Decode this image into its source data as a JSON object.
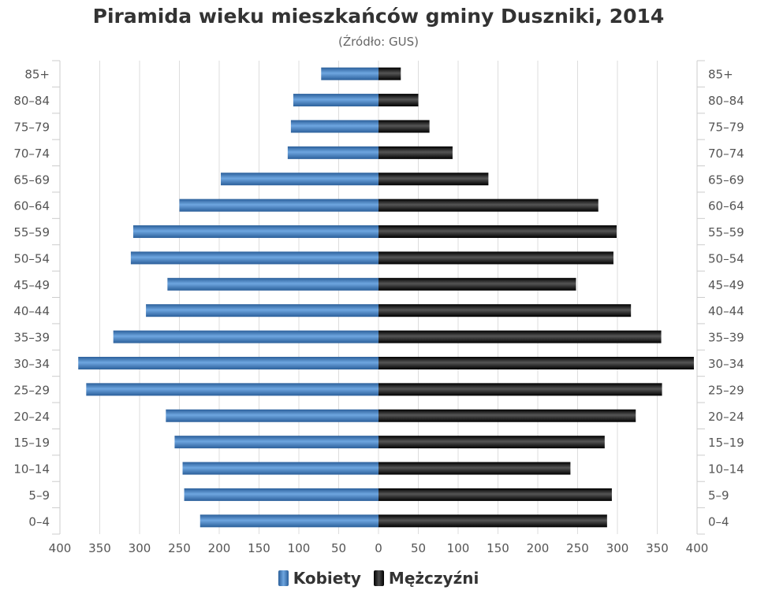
{
  "chart_data": {
    "type": "bar",
    "orientation": "horizontal",
    "title": "Piramida wieku mieszkańców gminy Duszniki, 2014",
    "subtitle": "(Źródło: GUS)",
    "categories": [
      "0–4",
      "5–9",
      "10–14",
      "15–19",
      "20–24",
      "25–29",
      "30–34",
      "35–39",
      "40–44",
      "45–49",
      "50–54",
      "55–59",
      "60–64",
      "65–69",
      "70–74",
      "75–79",
      "80–84",
      "85+"
    ],
    "series": [
      {
        "name": "Kobiety",
        "color": "#3d7cc2",
        "side": "left",
        "values": [
          224,
          244,
          246,
          256,
          267,
          367,
          377,
          333,
          292,
          265,
          311,
          308,
          250,
          198,
          114,
          110,
          107,
          72
        ]
      },
      {
        "name": "Mężczyźni",
        "color": "#111111",
        "side": "right",
        "values": [
          287,
          293,
          241,
          284,
          323,
          356,
          396,
          355,
          317,
          248,
          295,
          299,
          276,
          138,
          93,
          64,
          50,
          28
        ]
      }
    ],
    "xlim": [
      -400,
      400
    ],
    "xticks": [
      {
        "value": -400,
        "label": "400"
      },
      {
        "value": -350,
        "label": "350"
      },
      {
        "value": -300,
        "label": "300"
      },
      {
        "value": -250,
        "label": "250"
      },
      {
        "value": -200,
        "label": "200"
      },
      {
        "value": -150,
        "label": "150"
      },
      {
        "value": -100,
        "label": "100"
      },
      {
        "value": -50,
        "label": "50"
      },
      {
        "value": 0,
        "label": "0"
      },
      {
        "value": 50,
        "label": "50"
      },
      {
        "value": 100,
        "label": "100"
      },
      {
        "value": 150,
        "label": "150"
      },
      {
        "value": 200,
        "label": "200"
      },
      {
        "value": 250,
        "label": "250"
      },
      {
        "value": 300,
        "label": "300"
      },
      {
        "value": 350,
        "label": "350"
      },
      {
        "value": 400,
        "label": "400"
      }
    ],
    "grid": true,
    "legend_position": "bottom"
  }
}
